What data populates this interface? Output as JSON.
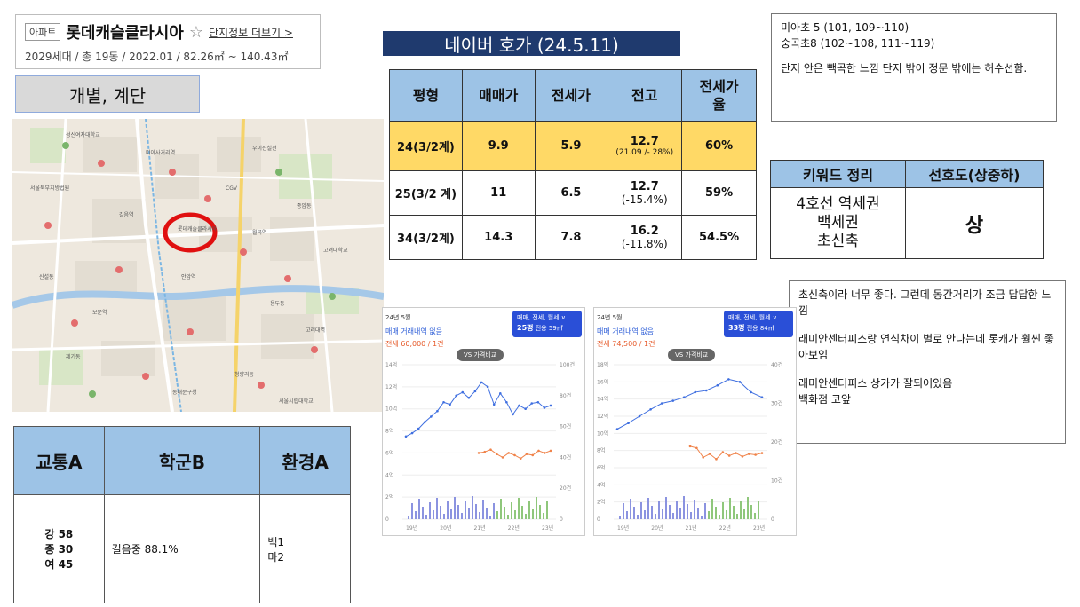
{
  "apartment": {
    "type_badge": "아파트",
    "name": "롯데캐슬클라시아",
    "star": "☆",
    "more_link": "단지정보 더보기 >",
    "summary": "2029세대 / 총 19동 / 2022.01 / 82.26㎡ ~ 140.43㎡"
  },
  "type_label": "개별, 계단",
  "map": {
    "labels": [
      "우이신설선",
      "서울북부지방법원",
      "용두동",
      "종암동",
      "제기동",
      "청량리동",
      "신설동",
      "고려대학교",
      "CGV",
      "성신여자대학교",
      "서울시립대학교",
      "동대문구청",
      "미아사거리역",
      "길음역",
      "월곡역",
      "보문역",
      "안암역",
      "고려대역",
      "롯데캐슬클라시아"
    ]
  },
  "scores": {
    "headers": [
      "교통A",
      "학군B",
      "환경A"
    ],
    "transport": "강 58\n종 30\n여 45",
    "school": "길음중 88.1%",
    "env_lines": [
      "백1",
      "마2"
    ]
  },
  "price": {
    "title": "네이버 호가 (24.5.11)",
    "headers": [
      "평형",
      "매매가",
      "전세가",
      "전고",
      "전세가\n율"
    ],
    "rows": [
      {
        "type": "24(3/2계)",
        "sale": "9.9",
        "jeonse": "5.9",
        "high": "12.7",
        "high_sub": "(21.09 /- 28%)",
        "ratio": "60%"
      },
      {
        "type": "25(3/2 계)",
        "sale": "11",
        "jeonse": "6.5",
        "high": "12.7",
        "high_sub": "(-15.4%)",
        "ratio": "59%"
      },
      {
        "type": "34(3/2계)",
        "sale": "14.3",
        "jeonse": "7.8",
        "high": "16.2",
        "high_sub": "(-11.8%)",
        "ratio": "54.5%"
      }
    ]
  },
  "school_note": {
    "line1": "미아초 5 (101, 109~110)",
    "line2": "숭곡초8 (102~108, 111~119)",
    "line3": "단지 안은 빽곡한 느낌 단지 밖이 정문 밖에는 허수선함."
  },
  "keywords": {
    "headers": [
      "키워드 정리",
      "선호도(상중하)"
    ],
    "keywords": "4호선 역세권\n백세권\n초신축",
    "preference": "상"
  },
  "comments": [
    "초신축이라 너무 좋다. 그런데 동간거리가 조금 답답한 느낌",
    "래미안센터피스랑 연식차이 별로 안나는데 롯캐가 훨씬 좋아보임",
    "래미안센터피스 상가가 잘되어있음\n백화점 코앞"
  ],
  "charts": [
    {
      "date": "24년 5월",
      "no_trade": "매매 거래내역 없음",
      "rent": "전세 60,000 / 1건",
      "selector": "매매, 전세, 월세 ∨",
      "size": "25평",
      "area": "전용 59㎡",
      "vs": "VS 가격비교",
      "left_ticks": [
        "14억",
        "12억",
        "10억",
        "8억",
        "6억",
        "4억",
        "2억",
        "0"
      ],
      "right_ticks": [
        "100건",
        "80건",
        "60건",
        "40건",
        "20건",
        "0"
      ],
      "x_ticks": [
        "19년",
        "20년",
        "21년",
        "22년",
        "23년"
      ],
      "chart_data": {
        "type": "line",
        "ylim": [
          0,
          14
        ],
        "series": [
          {
            "values": [
              7.5,
              7.8,
              8.2,
              8.8,
              9.3,
              9.8,
              10.6,
              10.4,
              11.2,
              11.5,
              11.0,
              11.6,
              12.4,
              12.0,
              10.4,
              11.4,
              10.6,
              9.5,
              10.3,
              10.0,
              10.5,
              10.6,
              10.1,
              10.3
            ]
          },
          {
            "values": [
              6.0,
              6.1,
              6.3,
              5.9,
              5.6,
              6.0,
              5.8,
              5.5,
              5.9,
              5.8,
              6.2,
              6.0,
              6.2
            ]
          }
        ]
      }
    },
    {
      "date": "24년 5월",
      "no_trade": "매매 거래내역 없음",
      "rent": "전세 74,500 / 1건",
      "selector": "매매, 전세, 월세 ∨",
      "size": "33평",
      "area": "전용 84㎡",
      "vs": "VS 가격비교",
      "left_ticks": [
        "18억",
        "16억",
        "14억",
        "12억",
        "10억",
        "8억",
        "6억",
        "4억",
        "2억",
        "0"
      ],
      "right_ticks": [
        "40건",
        "30건",
        "20건",
        "10건",
        "0"
      ],
      "x_ticks": [
        "19년",
        "20년",
        "21년",
        "22년",
        "23년"
      ],
      "chart_data": {
        "type": "line",
        "ylim": [
          0,
          18
        ],
        "series": [
          {
            "values": [
              10.5,
              11.2,
              12.0,
              12.8,
              13.5,
              13.8,
              14.2,
              14.8,
              15.0,
              15.6,
              16.3,
              16.0,
              14.8,
              14.2
            ]
          },
          {
            "values": [
              8.5,
              8.3,
              7.2,
              7.6,
              7.0,
              7.8,
              7.4,
              7.7,
              7.3,
              7.6,
              7.5,
              7.7
            ]
          }
        ]
      }
    }
  ]
}
